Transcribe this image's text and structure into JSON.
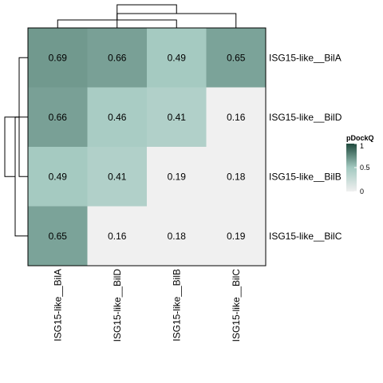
{
  "chart_data": {
    "type": "heatmap",
    "title": "",
    "rows": [
      "ISG15-like__BilA",
      "ISG15-like__BilD",
      "ISG15-like__BilB",
      "ISG15-like__BilC"
    ],
    "columns": [
      "ISG15-like__BilA",
      "ISG15-like__BilD",
      "ISG15-like__BilB",
      "ISG15-like__BilC"
    ],
    "values": [
      [
        0.69,
        0.66,
        0.49,
        0.65
      ],
      [
        0.66,
        0.46,
        0.41,
        0.16
      ],
      [
        0.49,
        0.41,
        0.19,
        0.18
      ],
      [
        0.65,
        0.16,
        0.18,
        0.19
      ]
    ],
    "value_labels": [
      [
        "0.69",
        "0.66",
        "0.49",
        "0.65"
      ],
      [
        "0.66",
        "0.46",
        "0.41",
        "0.16"
      ],
      [
        "0.49",
        "0.41",
        "0.19",
        "0.18"
      ],
      [
        "0.65",
        "0.16",
        "0.18",
        "0.19"
      ]
    ],
    "shaded_cells": "lower-left triangle plus first row and first column; other cells blank",
    "color_scale": {
      "low": "#f0f0f0",
      "mid": "#a3c9c0",
      "high": "#1f4a3d",
      "range": [
        0,
        1
      ]
    },
    "legend": {
      "title": "pDockQ",
      "ticks": [
        "1",
        "0.5",
        "0"
      ],
      "tick_values": [
        1,
        0.5,
        0
      ],
      "placement": "right"
    },
    "row_dendrogram": "left",
    "column_dendrogram": "top"
  }
}
